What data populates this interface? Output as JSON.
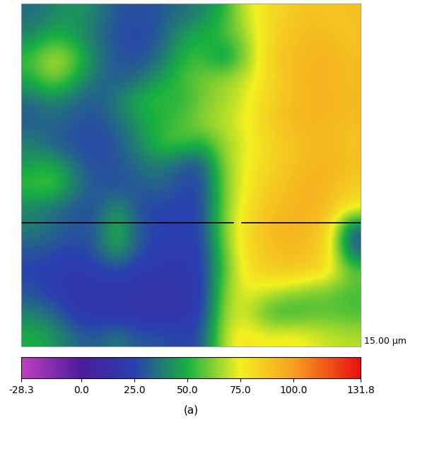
{
  "chart_data": {
    "type": "heatmap",
    "caption": "(a)",
    "scale_label": "15.00 µm",
    "tick_labels": false,
    "cells": [
      [
        35,
        40,
        45,
        40,
        30,
        28,
        30,
        35,
        40,
        50,
        70,
        80,
        85,
        90,
        88,
        90
      ],
      [
        40,
        50,
        45,
        35,
        28,
        25,
        30,
        45,
        50,
        55,
        65,
        80,
        88,
        92,
        90,
        88
      ],
      [
        55,
        70,
        60,
        40,
        30,
        28,
        35,
        50,
        55,
        40,
        60,
        82,
        90,
        92,
        95,
        90
      ],
      [
        50,
        65,
        50,
        35,
        30,
        35,
        45,
        55,
        60,
        65,
        70,
        80,
        88,
        95,
        92,
        90
      ],
      [
        35,
        40,
        35,
        30,
        40,
        50,
        55,
        50,
        60,
        65,
        72,
        82,
        90,
        92,
        95,
        92
      ],
      [
        30,
        35,
        30,
        28,
        35,
        45,
        50,
        55,
        65,
        68,
        75,
        85,
        90,
        95,
        92,
        90
      ],
      [
        40,
        30,
        28,
        25,
        30,
        40,
        55,
        58,
        50,
        65,
        72,
        80,
        88,
        90,
        92,
        88
      ],
      [
        45,
        50,
        35,
        28,
        30,
        35,
        40,
        30,
        28,
        62,
        75,
        82,
        88,
        92,
        95,
        90
      ],
      [
        55,
        60,
        40,
        30,
        28,
        30,
        35,
        28,
        25,
        60,
        75,
        85,
        90,
        95,
        92,
        85
      ],
      [
        40,
        35,
        30,
        28,
        45,
        28,
        25,
        25,
        25,
        60,
        78,
        88,
        92,
        95,
        90,
        80
      ],
      [
        40,
        35,
        30,
        30,
        55,
        30,
        25,
        25,
        25,
        62,
        80,
        90,
        95,
        92,
        85,
        30
      ],
      [
        30,
        28,
        25,
        30,
        50,
        30,
        22,
        22,
        22,
        58,
        80,
        88,
        92,
        90,
        82,
        30
      ],
      [
        25,
        22,
        20,
        22,
        25,
        20,
        20,
        20,
        22,
        55,
        78,
        85,
        88,
        85,
        80,
        60
      ],
      [
        30,
        22,
        18,
        18,
        20,
        18,
        18,
        18,
        20,
        62,
        75,
        70,
        65,
        60,
        58,
        55
      ],
      [
        40,
        35,
        22,
        18,
        18,
        16,
        16,
        18,
        22,
        65,
        72,
        55,
        50,
        55,
        58,
        55
      ],
      [
        50,
        45,
        35,
        30,
        40,
        30,
        30,
        25,
        28,
        68,
        80,
        75,
        78,
        75,
        70,
        68
      ]
    ],
    "colorbar": {
      "range": [
        -28.3,
        131.8
      ],
      "ticks": [
        -28.3,
        {
          "value": 0,
          "label": "0.0"
        },
        {
          "value": 25,
          "label": "25.0"
        },
        {
          "value": 50,
          "label": "50.0"
        },
        {
          "value": 75,
          "label": "75.0"
        },
        {
          "value": 100,
          "label": "100.0"
        },
        131.8
      ]
    }
  }
}
